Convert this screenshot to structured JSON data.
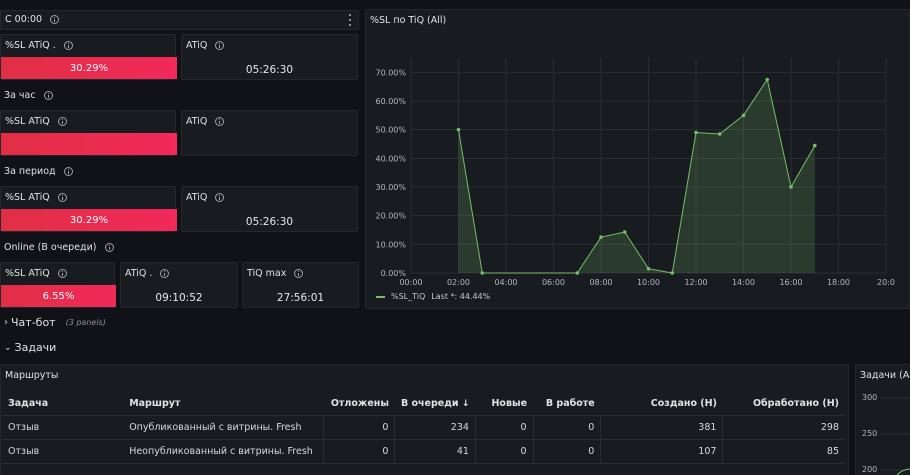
{
  "rows": {
    "since": "С 00:00",
    "hour": "За час",
    "period": "За период",
    "online": "Online (В очереди)",
    "chatbot": "Чат-бот",
    "chatbot_note": "(3 panels)",
    "tasks": "Задачи"
  },
  "stats": {
    "since_sl_title": "%SL ATiQ .",
    "since_sl_value": "30.29%",
    "since_sl_fraction": 1.0,
    "since_atiq_title": "ATiQ",
    "since_atiq_value": "05:26:30",
    "hour_sl_title": "%SL ATiQ",
    "hour_sl_fraction": 1.0,
    "hour_atiq_title": "ATiQ",
    "period_sl_title": "%SL ATiQ",
    "period_sl_value": "30.29%",
    "period_sl_fraction": 1.0,
    "period_atiq_title": "ATiQ",
    "period_atiq_value": "05:26:30",
    "online_sl_title": "%SL ATiQ",
    "online_sl_value": "6.55%",
    "online_sl_fraction": 1.0,
    "online_atiq_title": "ATiQ .",
    "online_atiq_value": "09:10:52",
    "online_tiqmax_title": "TiQ max",
    "online_tiqmax_value": "27:56:01"
  },
  "chart_data": {
    "type": "area",
    "title": "%SL по TiQ (All)",
    "x": [
      "02:00",
      "03:00",
      "07:00",
      "08:00",
      "09:00",
      "10:00",
      "11:00",
      "12:00",
      "13:00",
      "14:00",
      "15:00",
      "16:00",
      "17:00"
    ],
    "series": [
      {
        "name": "%SL_TiQ",
        "values": [
          50,
          0,
          0,
          12.5,
          14.3,
          1.5,
          0,
          49,
          48.5,
          55,
          67.5,
          30,
          44.44
        ]
      }
    ],
    "x_ticks": [
      "00:00",
      "02:00",
      "04:00",
      "06:00",
      "08:00",
      "10:00",
      "12:00",
      "14:00",
      "16:00",
      "18:00",
      "20:0"
    ],
    "y_ticks": [
      "0.00%",
      "10.00%",
      "20.00%",
      "30.00%",
      "40.00%",
      "50.00%",
      "60.00%",
      "70.00%"
    ],
    "ylim": [
      0,
      75
    ],
    "legend_label": "%SL_TiQ",
    "legend_last": "Last *: 44.44%",
    "color": "#73bf69"
  },
  "routes": {
    "title": "Маршруты",
    "columns": [
      "Задача",
      "Маршрут",
      "Отложены",
      "В очереди",
      "Новые",
      "В работе",
      "Создано (Н)",
      "Обработано (Н)"
    ],
    "sort_icon": "arrow-down-icon",
    "rows": [
      [
        "Отзыв",
        "Опубликованный с витрины. Fresh",
        "0",
        "234",
        "0",
        "0",
        "381",
        "298"
      ],
      [
        "Отзыв",
        "Неопубликованный с витрины. Fresh",
        "0",
        "41",
        "0",
        "0",
        "107",
        "85"
      ]
    ]
  },
  "tasks_panel": {
    "title": "Задачи (All",
    "y_ticks": [
      "300",
      "250",
      "200"
    ]
  },
  "colors": {
    "bar_red": "#e02f44",
    "series_green": "#73bf69",
    "background": "#111217",
    "panel": "#181b1f"
  }
}
